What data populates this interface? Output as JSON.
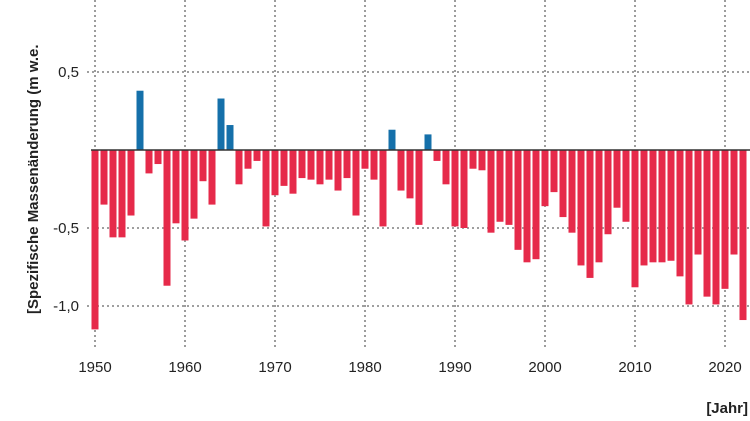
{
  "chart_data": {
    "type": "bar",
    "title": "",
    "xlabel": "[Jahr]",
    "ylabel": "[Spezifische Massenänderung (m w.e.",
    "ylim": [
      -1.2,
      0.95
    ],
    "xlim": [
      1950,
      2022
    ],
    "grid": true,
    "y_ticks": [
      {
        "value": 0.5,
        "label": "0,5"
      },
      {
        "value": -0.5,
        "label": "-0,5"
      },
      {
        "value": -1.0,
        "label": "-1,0"
      }
    ],
    "x_ticks": [
      1950,
      1960,
      1970,
      1980,
      1990,
      2000,
      2010,
      2020
    ],
    "colors": {
      "positive": "#1570aa",
      "negative": "#e62a4a"
    },
    "years": [
      1950,
      1951,
      1952,
      1953,
      1954,
      1955,
      1956,
      1957,
      1958,
      1959,
      1960,
      1961,
      1962,
      1963,
      1964,
      1965,
      1966,
      1967,
      1968,
      1969,
      1970,
      1971,
      1972,
      1973,
      1974,
      1975,
      1976,
      1977,
      1978,
      1979,
      1980,
      1981,
      1982,
      1983,
      1984,
      1985,
      1986,
      1987,
      1988,
      1989,
      1990,
      1991,
      1992,
      1993,
      1994,
      1995,
      1996,
      1997,
      1998,
      1999,
      2000,
      2001,
      2002,
      2003,
      2004,
      2005,
      2006,
      2007,
      2008,
      2009,
      2010,
      2011,
      2012,
      2013,
      2014,
      2015,
      2016,
      2017,
      2018,
      2019,
      2020,
      2021,
      2022
    ],
    "values": [
      -1.15,
      -0.35,
      -0.56,
      -0.56,
      -0.42,
      0.38,
      -0.15,
      -0.09,
      -0.87,
      -0.47,
      -0.58,
      -0.44,
      -0.2,
      -0.35,
      0.33,
      0.16,
      -0.22,
      -0.12,
      -0.07,
      -0.49,
      -0.29,
      -0.23,
      -0.28,
      -0.18,
      -0.19,
      -0.22,
      -0.19,
      -0.26,
      -0.18,
      -0.42,
      -0.12,
      -0.19,
      -0.49,
      0.13,
      -0.26,
      -0.31,
      -0.48,
      0.1,
      -0.07,
      -0.22,
      -0.49,
      -0.5,
      -0.12,
      -0.13,
      -0.53,
      -0.46,
      -0.48,
      -0.64,
      -0.72,
      -0.7,
      -0.36,
      -0.27,
      -0.43,
      -0.53,
      -0.74,
      -0.82,
      -0.72,
      -0.54,
      -0.37,
      -0.46,
      -0.88,
      -0.74,
      -0.72,
      -0.72,
      -0.71,
      -0.81,
      -0.99,
      -0.67,
      -0.94,
      -0.99,
      -0.89,
      -0.67,
      -1.09
    ]
  }
}
